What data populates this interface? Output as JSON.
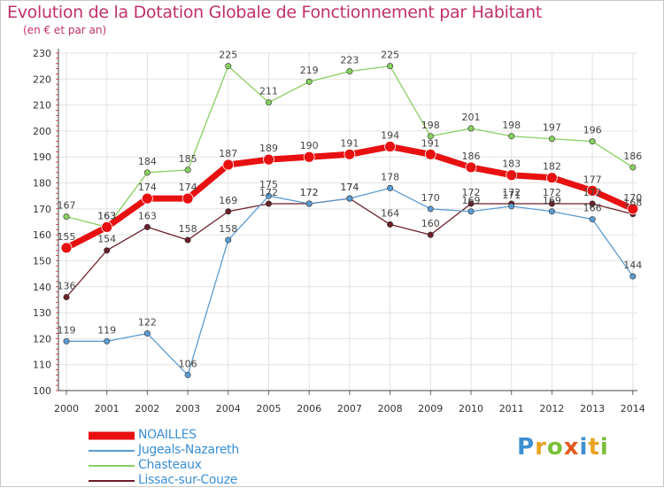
{
  "header": {
    "title": "Evolution de la Dotation Globale de Fonctionnement par Habitant",
    "subtitle": "(en € et par an)"
  },
  "brand": {
    "text": "Proxiti",
    "letters": [
      {
        "ch": "P",
        "color": "#3d8fd1"
      },
      {
        "ch": "r",
        "color": "#e8a320"
      },
      {
        "ch": "o",
        "color": "#7bbf3a"
      },
      {
        "ch": "x",
        "color": "#e45a1e"
      },
      {
        "ch": "i",
        "color": "#3d8fd1"
      },
      {
        "ch": "t",
        "color": "#e8a320"
      },
      {
        "ch": "i",
        "color": "#7bbf3a"
      }
    ]
  },
  "chart_data": {
    "type": "line",
    "title": "Evolution de la Dotation Globale de Fonctionnement par Habitant",
    "subtitle": "(en € et par an)",
    "x": [
      "2000",
      "2001",
      "2002",
      "2003",
      "2004",
      "2005",
      "2006",
      "2007",
      "2008",
      "2009",
      "2010",
      "2011",
      "2012",
      "2013",
      "2014"
    ],
    "yticks": [
      100,
      110,
      120,
      130,
      140,
      150,
      160,
      170,
      180,
      190,
      200,
      210,
      220,
      230
    ],
    "ylim": [
      100,
      230
    ],
    "grid": true,
    "legend_position": "bottom-left",
    "series": [
      {
        "name": "NOAILLES",
        "color": "#e81010",
        "values": [
          155,
          163,
          174,
          174,
          187,
          189,
          190,
          191,
          194,
          191,
          186,
          183,
          182,
          177,
          170
        ]
      },
      {
        "name": "Jugeals-Nazareth",
        "color": "#5b9bd0",
        "values": [
          119,
          119,
          122,
          106,
          158,
          175,
          172,
          174,
          178,
          170,
          169,
          171,
          169,
          166,
          144
        ]
      },
      {
        "name": "Chasteaux",
        "color": "#88d060",
        "values": [
          167,
          163,
          184,
          185,
          225,
          211,
          219,
          223,
          225,
          198,
          201,
          198,
          197,
          196,
          186
        ]
      },
      {
        "name": "Lissac-sur-Couze",
        "color": "#6b1f2a",
        "values": [
          136,
          154,
          163,
          158,
          169,
          172,
          172,
          174,
          164,
          160,
          172,
          172,
          172,
          172,
          168
        ]
      }
    ]
  }
}
